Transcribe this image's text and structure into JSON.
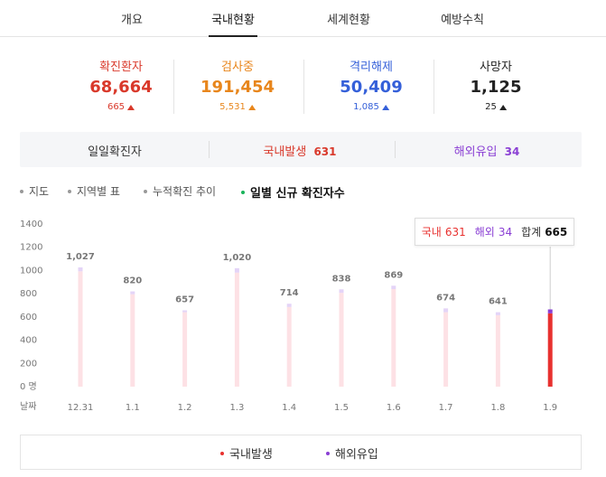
{
  "tabs": {
    "items": [
      "개요",
      "국내현황",
      "세계현황",
      "예방수칙"
    ],
    "active": 1
  },
  "stats": [
    {
      "label": "확진환자",
      "value": "68,664",
      "delta": "665",
      "color": "#d9392b"
    },
    {
      "label": "검사중",
      "value": "191,454",
      "delta": "5,531",
      "color": "#e8861c"
    },
    {
      "label": "격리해제",
      "value": "50,409",
      "delta": "1,085",
      "color": "#3560d9"
    },
    {
      "label": "사망자",
      "value": "1,125",
      "delta": "25",
      "color": "#222222"
    }
  ],
  "summary": {
    "title": "일일확진자",
    "domestic_label": "국내발생",
    "domestic": "631",
    "overseas_label": "해외유입",
    "overseas": "34"
  },
  "menu": {
    "items": [
      "지도",
      "지역별 표",
      "누적확진 추이",
      "일별 신규 확진자수"
    ],
    "active": 3
  },
  "chart_data": {
    "type": "bar",
    "stacked": true,
    "x_label": "날짜",
    "categories": [
      "12.31",
      "1.1",
      "1.2",
      "1.3",
      "1.4",
      "1.5",
      "1.6",
      "1.7",
      "1.8",
      "1.9"
    ],
    "series": [
      {
        "name": "국내발생",
        "color": "#e8312f",
        "light_color": "#fde1e5",
        "values": [
          993,
          796,
          641,
          982,
          686,
          808,
          840,
          641,
          615,
          631
        ]
      },
      {
        "name": "해외유입",
        "color": "#8a3fd4",
        "light_color": "#e4d4f7",
        "values": [
          34,
          24,
          16,
          38,
          28,
          30,
          29,
          33,
          26,
          34
        ]
      }
    ],
    "totals": [
      1027,
      820,
      657,
      1020,
      714,
      838,
      869,
      674,
      641,
      665
    ],
    "total_labels": [
      "1,027",
      "820",
      "657",
      "1,020",
      "714",
      "838",
      "869",
      "674",
      "641",
      null
    ],
    "ylim": [
      0,
      1400
    ],
    "yticks": [
      {
        "value": 0,
        "label": "0 명"
      },
      200,
      400,
      600,
      800,
      1000,
      1200,
      1400
    ],
    "highlight": 9,
    "tooltip": {
      "domestic_label": "국내",
      "domestic": "631",
      "overseas_label": "해외",
      "overseas": "34",
      "total_label": "합계",
      "total": "665"
    }
  }
}
